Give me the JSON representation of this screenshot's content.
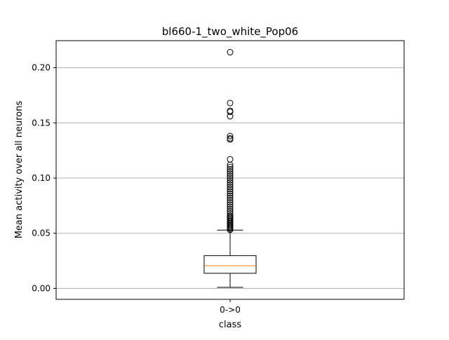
{
  "chart_data": {
    "type": "box",
    "title": "bl660-1_two_white_Pop06",
    "xlabel": "class",
    "ylabel": "Mean activity over all neurons",
    "categories": [
      "0->0"
    ],
    "ylim": [
      -0.0099,
      0.2245
    ],
    "yticks": [
      0.0,
      0.05,
      0.1,
      0.15,
      0.2
    ],
    "ytick_labels": [
      "0.00",
      "0.05",
      "0.10",
      "0.15",
      "0.20"
    ],
    "grid": "y",
    "boxes": [
      {
        "category": "0->0",
        "whisker_low": 0.001,
        "q1": 0.0137,
        "median": 0.0206,
        "q3": 0.0297,
        "whisker_high": 0.0528,
        "outliers": [
          0.214,
          0.168,
          0.161,
          0.16,
          0.156,
          0.138,
          0.136,
          0.135,
          0.117,
          0.112,
          0.11,
          0.108,
          0.106,
          0.104,
          0.102,
          0.1,
          0.098,
          0.096,
          0.094,
          0.092,
          0.09,
          0.088,
          0.086,
          0.084,
          0.082,
          0.08,
          0.078,
          0.076,
          0.074,
          0.072,
          0.07,
          0.068,
          0.066,
          0.065,
          0.064,
          0.063,
          0.062,
          0.061,
          0.06,
          0.059,
          0.058,
          0.057,
          0.056,
          0.055,
          0.054,
          0.053
        ]
      }
    ],
    "colors": {
      "box": "#000000",
      "median": "#ff7f0e",
      "grid": "#b0b0b0",
      "outlier": "#000000"
    }
  }
}
